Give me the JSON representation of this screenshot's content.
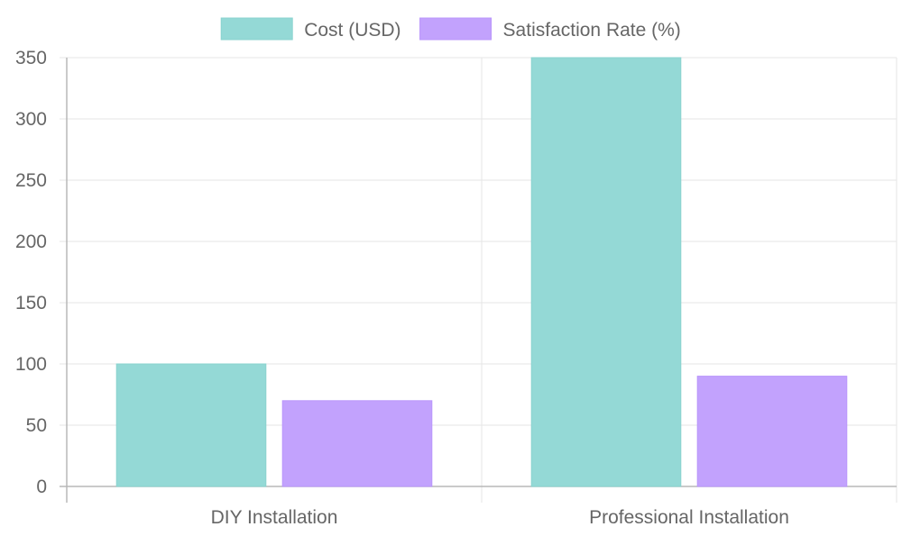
{
  "chart_data": {
    "type": "bar",
    "categories": [
      "DIY Installation",
      "Professional Installation"
    ],
    "series": [
      {
        "name": "Cost (USD)",
        "values": [
          100,
          350
        ],
        "fill": "#94d9d6",
        "stroke": "#8ad3cf"
      },
      {
        "name": "Satisfaction Rate (%)",
        "values": [
          70,
          90
        ],
        "fill": "#c2a2fd",
        "stroke": "#b996fb"
      }
    ],
    "title": "",
    "xlabel": "",
    "ylabel": "",
    "ylim": [
      0,
      350
    ],
    "yticks": [
      0,
      50,
      100,
      150,
      200,
      250,
      300,
      350
    ],
    "grid": true,
    "legend_position": "top-center"
  }
}
